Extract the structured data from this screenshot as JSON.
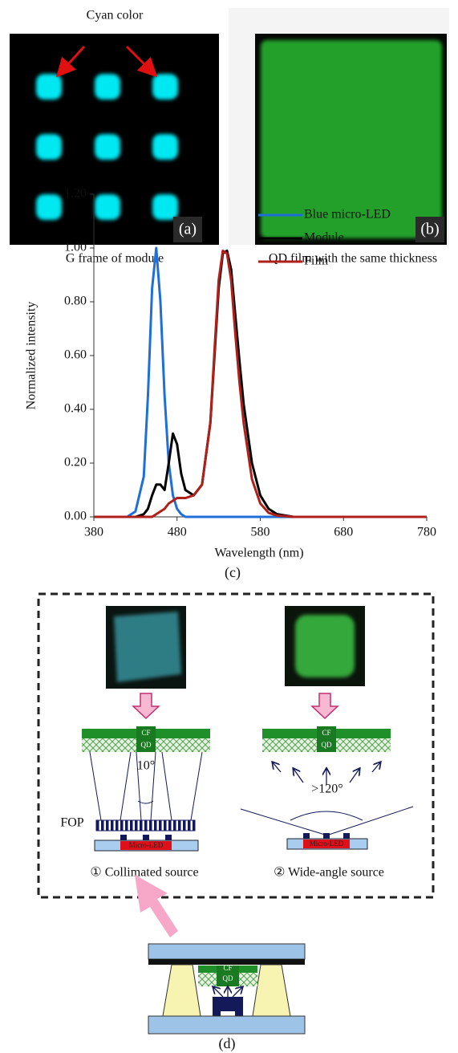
{
  "panel_a": {
    "annotation": "Cyan color",
    "label": "(a)",
    "caption": "G frame of module"
  },
  "panel_b": {
    "label": "(b)",
    "caption": "QD film with the same thickness"
  },
  "chart_data": {
    "type": "line",
    "panel_label": "(c)",
    "x_label": "Wavelength (nm)",
    "y_label": "Normalized intensity",
    "x": [
      380,
      420,
      430,
      440,
      445,
      450,
      455,
      460,
      465,
      470,
      475,
      480,
      485,
      490,
      500,
      510,
      520,
      525,
      530,
      535,
      540,
      545,
      550,
      555,
      560,
      570,
      580,
      590,
      600,
      620,
      780
    ],
    "series": [
      {
        "name": "Blue micro-LED",
        "color": "#1f6fd8",
        "values": [
          0,
          0,
          0.02,
          0.15,
          0.45,
          0.85,
          1.0,
          0.8,
          0.45,
          0.2,
          0.08,
          0.03,
          0.01,
          0,
          0,
          0,
          0,
          0,
          0,
          0,
          0,
          0,
          0,
          0,
          0,
          0,
          0,
          0,
          0,
          0,
          0
        ]
      },
      {
        "name": "Module",
        "color": "#000000",
        "values": [
          0,
          0,
          0,
          0.01,
          0.03,
          0.08,
          0.12,
          0.12,
          0.1,
          0.2,
          0.31,
          0.27,
          0.16,
          0.1,
          0.08,
          0.12,
          0.35,
          0.6,
          0.85,
          0.98,
          0.99,
          0.92,
          0.75,
          0.58,
          0.42,
          0.2,
          0.08,
          0.03,
          0.01,
          0,
          0
        ]
      },
      {
        "name": "Film",
        "color": "#b0201a",
        "values": [
          0,
          0,
          0,
          0,
          0,
          0,
          0.01,
          0.02,
          0.03,
          0.05,
          0.06,
          0.07,
          0.07,
          0.07,
          0.08,
          0.12,
          0.35,
          0.62,
          0.88,
          0.99,
          0.98,
          0.88,
          0.68,
          0.5,
          0.35,
          0.14,
          0.05,
          0.015,
          0.005,
          0,
          0
        ]
      }
    ],
    "xlim": [
      380,
      780
    ],
    "xticks": [
      380,
      480,
      580,
      680,
      780
    ],
    "ylim": [
      0,
      1.2
    ],
    "yticks": [
      {
        "value": 0,
        "label": "0.00"
      },
      {
        "value": 0.2,
        "label": "0.20"
      },
      {
        "value": 0.4,
        "label": "0.40"
      },
      {
        "value": 0.6,
        "label": "0.60"
      },
      {
        "value": 0.8,
        "label": "0.80"
      },
      {
        "value": 1.0,
        "label": "1.00"
      },
      {
        "value": 1.2,
        "label": "1.20"
      }
    ],
    "legend_position": "top-right"
  },
  "panel_d": {
    "left": {
      "cf": "CF",
      "qd": "QD",
      "angle": "10°",
      "fop": "FOP",
      "led": "Micro-LED",
      "caption": "① Collimated source"
    },
    "right": {
      "cf": "CF",
      "qd": "QD",
      "angle": ">120°",
      "led": "Micro-LED",
      "caption": "② Wide-angle source"
    },
    "device": {
      "cf": "CF",
      "qd": "QD"
    },
    "label": "(d)"
  }
}
